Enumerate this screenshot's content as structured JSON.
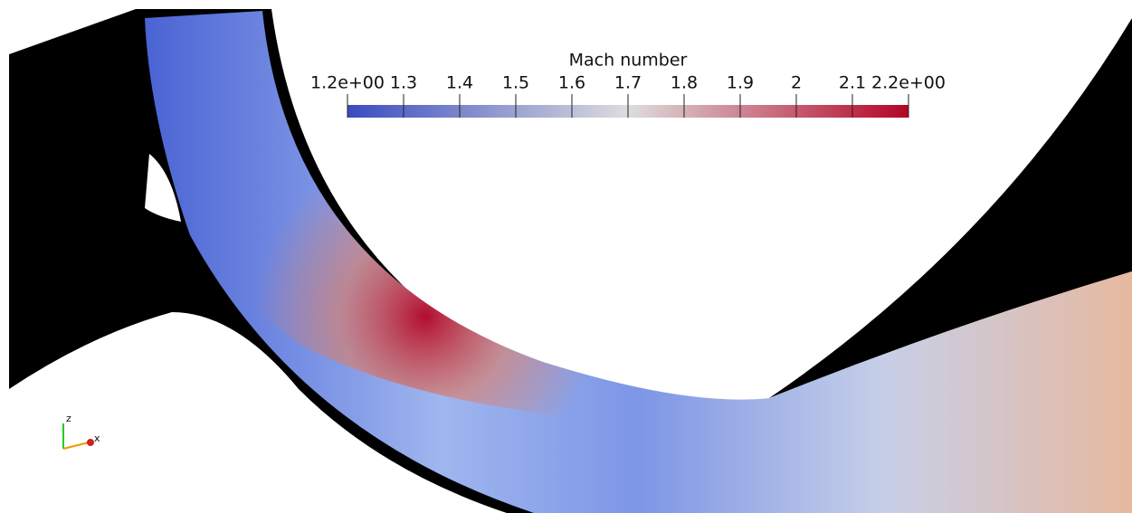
{
  "colorbar": {
    "title": "Mach number",
    "range": [
      1.2,
      2.2
    ],
    "ticks": [
      {
        "value": 1.2,
        "label": "1.2e+00"
      },
      1.3,
      1.4,
      1.5,
      1.6,
      1.7,
      1.8,
      1.9,
      2,
      2.1,
      {
        "value": 2.2,
        "label": "2.2e+00"
      }
    ]
  },
  "orientation_axes": {
    "z": "z",
    "x": "x"
  }
}
